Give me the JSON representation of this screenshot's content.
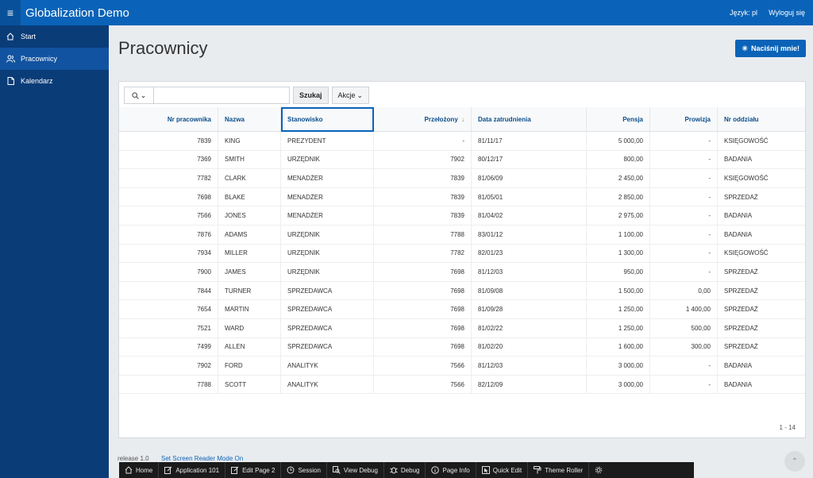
{
  "header": {
    "menu_icon": "hamburger-icon",
    "title": "Globalization Demo",
    "language": "Język: pl",
    "logout": "Wyloguj się"
  },
  "sidebar": {
    "items": [
      {
        "label": "Start",
        "icon": "home-icon",
        "active": false
      },
      {
        "label": "Pracownicy",
        "icon": "users-icon",
        "active": true
      },
      {
        "label": "Kalendarz",
        "icon": "document-icon",
        "active": false
      }
    ]
  },
  "page": {
    "title": "Pracownicy",
    "action_button": "Naciśnij mnie!"
  },
  "report": {
    "search_placeholder": "",
    "search_button": "Szukaj",
    "actions_button": "Akcje",
    "columns": [
      "Nr pracownika",
      "Nazwa",
      "Stanowisko",
      "Przełożony",
      "Data zatrudnienia",
      "Pensja",
      "Prowizja",
      "Nr oddziału"
    ],
    "rows": [
      [
        "7839",
        "KING",
        "PREZYDENT",
        "-",
        "81/11/17",
        "5 000,00",
        "-",
        "KSIĘGOWOŚĆ"
      ],
      [
        "7369",
        "SMITH",
        "URZĘDNIK",
        "7902",
        "80/12/17",
        "800,00",
        "-",
        "BADANIA"
      ],
      [
        "7782",
        "CLARK",
        "MENADŻER",
        "7839",
        "81/06/09",
        "2 450,00",
        "-",
        "KSIĘGOWOŚĆ"
      ],
      [
        "7698",
        "BLAKE",
        "MENADŻER",
        "7839",
        "81/05/01",
        "2 850,00",
        "-",
        "SPRZEDAŻ"
      ],
      [
        "7566",
        "JONES",
        "MENADŻER",
        "7839",
        "81/04/02",
        "2 975,00",
        "-",
        "BADANIA"
      ],
      [
        "7876",
        "ADAMS",
        "URZĘDNIK",
        "7788",
        "83/01/12",
        "1 100,00",
        "-",
        "BADANIA"
      ],
      [
        "7934",
        "MILLER",
        "URZĘDNIK",
        "7782",
        "82/01/23",
        "1 300,00",
        "-",
        "KSIĘGOWOŚĆ"
      ],
      [
        "7900",
        "JAMES",
        "URZĘDNIK",
        "7698",
        "81/12/03",
        "950,00",
        "-",
        "SPRZEDAŻ"
      ],
      [
        "7844",
        "TURNER",
        "SPRZEDAWCA",
        "7698",
        "81/09/08",
        "1 500,00",
        "0,00",
        "SPRZEDAŻ"
      ],
      [
        "7654",
        "MARTIN",
        "SPRZEDAWCA",
        "7698",
        "81/09/28",
        "1 250,00",
        "1 400,00",
        "SPRZEDAŻ"
      ],
      [
        "7521",
        "WARD",
        "SPRZEDAWCA",
        "7698",
        "81/02/22",
        "1 250,00",
        "500,00",
        "SPRZEDAŻ"
      ],
      [
        "7499",
        "ALLEN",
        "SPRZEDAWCA",
        "7698",
        "81/02/20",
        "1 600,00",
        "300,00",
        "SPRZEDAŻ"
      ],
      [
        "7902",
        "FORD",
        "ANALITYK",
        "7566",
        "81/12/03",
        "3 000,00",
        "-",
        "BADANIA"
      ],
      [
        "7788",
        "SCOTT",
        "ANALITYK",
        "7566",
        "82/12/09",
        "3 000,00",
        "-",
        "BADANIA"
      ]
    ],
    "pagination": "1 - 14"
  },
  "footer": {
    "release": "release 1.0",
    "screen_reader": "Set Screen Reader Mode On"
  },
  "devbar": {
    "items": [
      {
        "label": "Home",
        "icon": "home-icon"
      },
      {
        "label": "Application 101",
        "icon": "edit-icon"
      },
      {
        "label": "Edit Page 2",
        "icon": "edit-icon"
      },
      {
        "label": "Session",
        "icon": "clock-icon"
      },
      {
        "label": "View Debug",
        "icon": "magnifier-icon"
      },
      {
        "label": "Debug",
        "icon": "bug-icon"
      },
      {
        "label": "Page Info",
        "icon": "info-icon"
      },
      {
        "label": "Quick Edit",
        "icon": "cursor-icon"
      },
      {
        "label": "Theme Roller",
        "icon": "paint-roller-icon"
      }
    ],
    "settings_icon": "gear-icon"
  },
  "colors": {
    "header": "#0a63b8",
    "sidebar": "#0a3c78",
    "sidebar_active": "#1153a0",
    "link": "#0a4d8c",
    "devbar": "#1b1b1b"
  }
}
